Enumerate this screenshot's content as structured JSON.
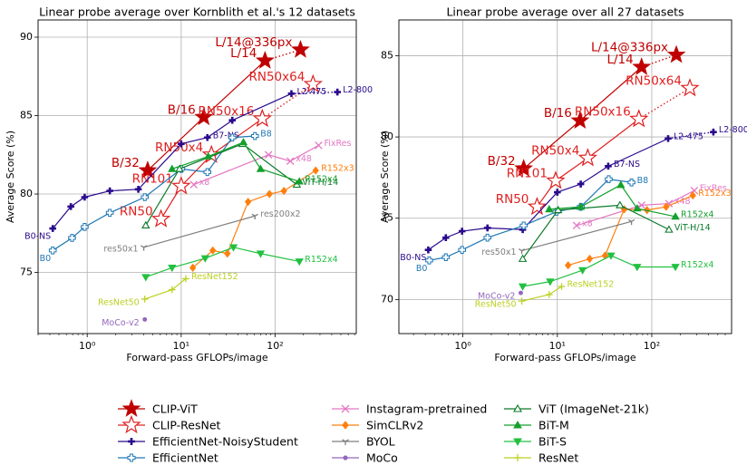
{
  "legend": [
    {
      "name": "CLIP-ViT",
      "color": "#c00000",
      "marker": "star"
    },
    {
      "name": "CLIP-ResNet",
      "color": "#e02020",
      "marker": "star-open"
    },
    {
      "name": "EfficientNet-NoisyStudent",
      "color": "#2a0a8c",
      "marker": "plus-bold"
    },
    {
      "name": "EfficientNet",
      "color": "#1f77b4",
      "marker": "plus-open"
    },
    {
      "name": "Instagram-pretrained",
      "color": "#e377c2",
      "marker": "x"
    },
    {
      "name": "SimCLRv2",
      "color": "#ff7f0e",
      "marker": "diamond"
    },
    {
      "name": "BYOL",
      "color": "#7f7f7f",
      "marker": "tri-y"
    },
    {
      "name": "MoCo",
      "color": "#9467bd",
      "marker": "circle"
    },
    {
      "name": "ViT (ImageNet-21k)",
      "color": "#0b7a2a",
      "marker": "triangle-open"
    },
    {
      "name": "BiT-M",
      "color": "#14a02c",
      "marker": "triangle"
    },
    {
      "name": "BiT-S",
      "color": "#22c040",
      "marker": "triangle-down"
    },
    {
      "name": "ResNet",
      "color": "#bcd022",
      "marker": "plus"
    }
  ],
  "chart_data": [
    {
      "type": "line",
      "title": "Linear probe average over Kornblith et al.'s 12 datasets",
      "xlabel": "Forward-pass GFLOPs/image",
      "ylabel": "Average Score (%)",
      "xscale": "log",
      "xlim": [
        0.3,
        730
      ],
      "ylim": [
        71.1,
        91.1
      ],
      "xticks": [
        {
          "value": 1,
          "label": "10⁰"
        },
        {
          "value": 10,
          "label": "10¹"
        },
        {
          "value": 100,
          "label": "10²"
        }
      ],
      "yticks": [
        75,
        80,
        85,
        90
      ],
      "grid": true,
      "series": [
        {
          "x": [
            4.4,
            17.4,
            78,
            186
          ],
          "values": [
            81.5,
            84.9,
            88.5,
            89.2
          ],
          "labels": [
            "B/32",
            "B/16",
            "L/14",
            "L/14@336px"
          ],
          "last_segment": "dotted"
        },
        {
          "x": [
            6.1,
            10,
            21,
            73,
            253
          ],
          "values": [
            78.4,
            80.5,
            82.5,
            84.8,
            87.0
          ],
          "labels": [
            "RN50",
            "RN101",
            "RN50x4",
            "RN50x16",
            "RN50x64"
          ],
          "last_segment": "dotted"
        },
        {
          "x": [
            0.43,
            0.67,
            0.94,
            1.74,
            3.5,
            10,
            19,
            35,
            149,
            460
          ],
          "values": [
            77.8,
            79.2,
            79.8,
            80.2,
            80.3,
            83.2,
            83.6,
            84.7,
            86.4,
            86.5
          ],
          "labels": [
            "B0-NS",
            null,
            null,
            null,
            null,
            null,
            "B7-NS",
            null,
            "L2-475",
            "L2-800"
          ],
          "last_segment": "dotted"
        },
        {
          "x": [
            0.43,
            0.69,
            0.94,
            1.74,
            4.1,
            10,
            19,
            35,
            61
          ],
          "values": [
            76.4,
            77.2,
            77.9,
            78.8,
            79.8,
            81.6,
            81.4,
            83.6,
            83.7
          ],
          "labels": [
            "B0",
            null,
            null,
            null,
            null,
            null,
            null,
            null,
            "B8"
          ]
        },
        {
          "x": [
            13.6,
            85,
            145,
            290
          ],
          "values": [
            80.6,
            82.5,
            82.1,
            83.1
          ],
          "labels": [
            "x8",
            null,
            "x48",
            "FixRes"
          ]
        },
        {
          "x": [
            13.3,
            21.7,
            31,
            51.5,
            87,
            124,
            270
          ],
          "values": [
            75.3,
            76.4,
            76.2,
            79.5,
            80.0,
            80.2,
            81.5
          ],
          "labels": [
            null,
            null,
            null,
            null,
            null,
            null,
            "R152x3"
          ]
        },
        {
          "x": [
            4.0,
            61
          ],
          "values": [
            76.6,
            78.6
          ],
          "labels": [
            "res50x1",
            "res200x2"
          ]
        },
        {
          "x": [
            4.1
          ],
          "values": [
            72.0
          ],
          "labels": [
            "MoCo-v2"
          ]
        },
        {
          "x": [
            4.2,
            9.6,
            45,
            170
          ],
          "values": [
            78.0,
            81.6,
            83.2,
            80.6
          ],
          "labels": [
            null,
            null,
            null,
            "ViT-H/14"
          ]
        },
        {
          "x": [
            8.0,
            19.4,
            46,
            70,
            181
          ],
          "values": [
            81.6,
            82.4,
            83.3,
            81.6,
            80.8
          ],
          "labels": [
            null,
            null,
            null,
            null,
            "R152x4"
          ]
        },
        {
          "x": [
            4.2,
            8.0,
            18,
            36,
            70,
            181
          ],
          "values": [
            74.7,
            75.3,
            75.9,
            76.6,
            76.2,
            75.7
          ],
          "labels": [
            null,
            null,
            null,
            null,
            null,
            "R152x4"
          ]
        },
        {
          "x": [
            4.1,
            8.0,
            11.2
          ],
          "values": [
            73.3,
            73.9,
            74.6
          ],
          "labels": [
            "ResNet50",
            null,
            "ResNet152"
          ]
        }
      ]
    },
    {
      "type": "line",
      "title": "Linear probe average over all 27 datasets",
      "xlabel": "Forward-pass GFLOPs/image",
      "ylabel": "Average Score (%)",
      "xscale": "log",
      "xlim": [
        0.21,
        700
      ],
      "ylim": [
        67.9,
        87.2
      ],
      "xticks": [
        {
          "value": 1,
          "label": "10⁰"
        },
        {
          "value": 10,
          "label": "10¹"
        },
        {
          "value": 100,
          "label": "10²"
        }
      ],
      "yticks": [
        70,
        75,
        80,
        85
      ],
      "grid": true,
      "series": [
        {
          "x": [
            4.4,
            17.4,
            78,
            182
          ],
          "values": [
            78.05,
            81.0,
            84.3,
            85.05
          ],
          "labels": [
            "B/32",
            "B/16",
            "L/14",
            "L/14@336px"
          ],
          "last_segment": "dotted"
        },
        {
          "x": [
            6.1,
            9.6,
            21,
            73,
            253
          ],
          "values": [
            75.7,
            77.3,
            78.7,
            81.1,
            83.0
          ],
          "labels": [
            "RN50",
            "RN101",
            "RN50x4",
            "RN50x16",
            "RN50x64"
          ],
          "last_segment": "dotted"
        },
        {
          "x": [
            0.43,
            0.66,
            0.98,
            1.82,
            4.3,
            10,
            17.7,
            34.6,
            149,
            449
          ],
          "values": [
            73.05,
            73.8,
            74.2,
            74.4,
            74.3,
            76.6,
            77.1,
            78.2,
            79.9,
            80.3
          ],
          "labels": [
            "B0-NS",
            null,
            null,
            null,
            null,
            null,
            null,
            "B7-NS",
            "L2-475",
            "L2-800"
          ],
          "last_segment": "dotted"
        },
        {
          "x": [
            0.44,
            0.66,
            0.98,
            1.82,
            4.4,
            9.8,
            17.7,
            35,
            61
          ],
          "values": [
            72.4,
            72.6,
            73.05,
            73.8,
            74.55,
            75.4,
            75.7,
            77.4,
            77.2
          ],
          "labels": [
            "B0",
            null,
            null,
            null,
            null,
            null,
            null,
            null,
            "B8"
          ]
        },
        {
          "x": [
            16,
            78,
            152,
            282
          ],
          "values": [
            74.55,
            75.8,
            75.9,
            76.7
          ],
          "labels": [
            "x8",
            null,
            "x48",
            "FixRes"
          ]
        },
        {
          "x": [
            13,
            22,
            32,
            51,
            89,
            142,
            272
          ],
          "values": [
            72.1,
            72.5,
            72.7,
            75.55,
            75.5,
            75.7,
            76.4
          ],
          "labels": [
            null,
            null,
            null,
            null,
            null,
            null,
            "R152x3"
          ]
        },
        {
          "x": [
            4.2,
            61
          ],
          "values": [
            73.0,
            74.8
          ],
          "labels": [
            "res50x1",
            null
          ]
        },
        {
          "x": [
            4.1
          ],
          "values": [
            70.4
          ],
          "labels": [
            "MoCo-v2"
          ]
        },
        {
          "x": [
            4.3,
            10.2,
            46,
            152
          ],
          "values": [
            72.5,
            75.5,
            75.8,
            74.3
          ],
          "labels": [
            null,
            null,
            null,
            "ViT-H/14"
          ]
        },
        {
          "x": [
            8.2,
            17.7,
            47,
            70,
            178
          ],
          "values": [
            75.55,
            75.7,
            77.05,
            75.6,
            75.1
          ],
          "labels": [
            null,
            null,
            null,
            null,
            "R152x4"
          ]
        },
        {
          "x": [
            4.3,
            8.4,
            18.5,
            37,
            70,
            178
          ],
          "values": [
            70.8,
            71.1,
            71.8,
            72.7,
            72.0,
            72.0
          ],
          "labels": [
            null,
            null,
            null,
            null,
            null,
            "R152x4"
          ]
        },
        {
          "x": [
            4.2,
            8.2,
            11.1
          ],
          "values": [
            69.9,
            70.3,
            70.8
          ],
          "labels": [
            "ResNet50",
            null,
            "ResNet152"
          ]
        }
      ]
    }
  ]
}
